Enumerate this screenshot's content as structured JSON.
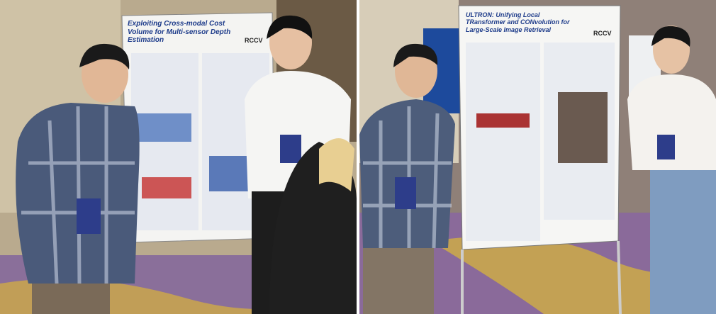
{
  "photos": [
    {
      "poster": {
        "title": "Exploiting Cross-modal Cost Volume for Multi-sensor Depth Estimation",
        "badge": "RCCV"
      }
    },
    {
      "poster": {
        "title": "ULTRON: Unifying Local TRansformer and CONvolution for Large-Scale Image Retrieval",
        "badge": "RCCV"
      }
    }
  ]
}
